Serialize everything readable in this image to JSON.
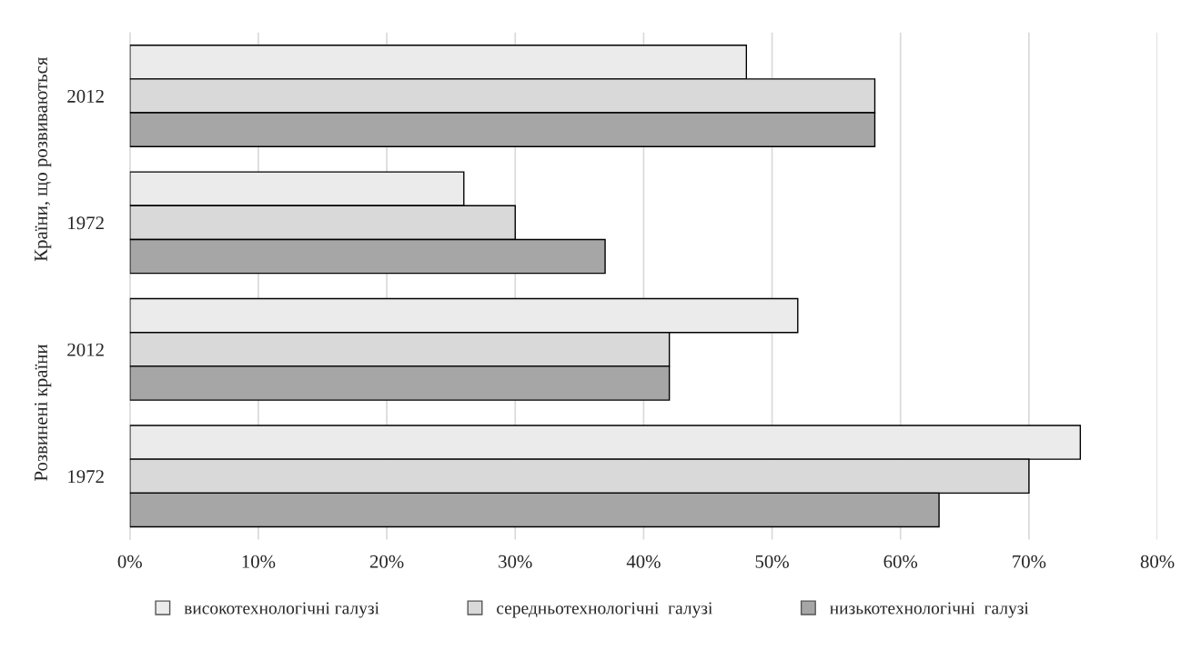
{
  "chart_data": {
    "type": "bar",
    "orientation": "horizontal",
    "categories": [
      "2012",
      "1972",
      "2012",
      "1972"
    ],
    "series": [
      {
        "name": "високотехнологічні галузі",
        "color": "#ebebeb",
        "values": [
          48,
          26,
          52,
          74
        ]
      },
      {
        "name": "середньотехнологічні  галузі",
        "color": "#d9d9d9",
        "values": [
          58,
          30,
          42,
          70
        ]
      },
      {
        "name": "низькотехнологічні  галузі",
        "color": "#a6a6a6",
        "values": [
          58,
          37,
          42,
          63
        ]
      }
    ],
    "annotations": [
      "Країни, що розвиваються",
      "Розвинені країни"
    ],
    "xlim": [
      0,
      80
    ],
    "xticks": [
      {
        "value": 0,
        "label": "0%"
      },
      {
        "value": 10,
        "label": "10%"
      },
      {
        "value": 20,
        "label": "20%"
      },
      {
        "value": 30,
        "label": "30%"
      },
      {
        "value": 40,
        "label": "40%"
      },
      {
        "value": 50,
        "label": "50%"
      },
      {
        "value": 60,
        "label": "60%"
      },
      {
        "value": 70,
        "label": "70%"
      },
      {
        "value": 80,
        "label": "80%"
      }
    ],
    "grid": "x",
    "legend": "bottom"
  }
}
